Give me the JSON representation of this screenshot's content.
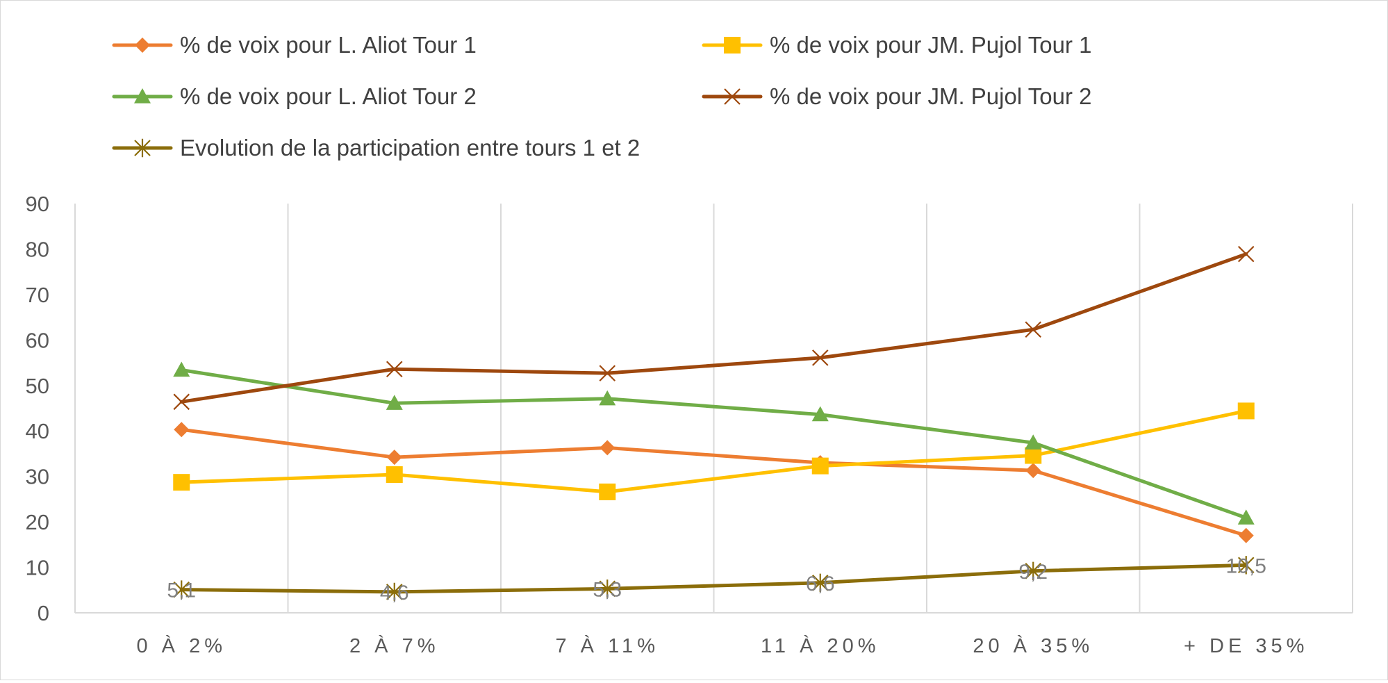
{
  "chart_data": {
    "type": "line",
    "title": "",
    "xlabel": "",
    "ylabel": "",
    "categories": [
      "0 À 2%",
      "2 À 7%",
      "7 À 11%",
      "11 À 20%",
      "20 À 35%",
      "+ DE 35%"
    ],
    "ylim": [
      0,
      90
    ],
    "yticks": [
      0,
      10,
      20,
      30,
      40,
      50,
      60,
      70,
      80,
      90
    ],
    "grid": "vertical",
    "legend_position": "top",
    "series": [
      {
        "name": "% de voix pour L. Aliot Tour 1",
        "color": "#ED7D31",
        "marker": "diamond",
        "values": [
          40.3,
          34.2,
          36.3,
          33.0,
          31.3,
          17.0
        ]
      },
      {
        "name": "% de voix pour JM.  Pujol Tour 1",
        "color": "#FFC000",
        "marker": "square",
        "values": [
          28.7,
          30.4,
          26.6,
          32.3,
          34.6,
          44.4
        ]
      },
      {
        "name": "% de voix pour L. Aliot Tour 2",
        "color": "#70AD47",
        "marker": "triangle",
        "values": [
          53.4,
          46.1,
          47.1,
          43.6,
          37.4,
          20.9
        ]
      },
      {
        "name": "% de voix pour JM.  Pujol Tour 2",
        "color": "#9E480E",
        "marker": "x",
        "values": [
          46.4,
          53.6,
          52.7,
          56.1,
          62.3,
          78.9
        ]
      },
      {
        "name": "Evolution de la participation entre tours 1 et 2",
        "color": "#8B6D0A",
        "marker": "star",
        "values": [
          5.1,
          4.6,
          5.3,
          6.6,
          9.2,
          10.5
        ],
        "data_labels": [
          "5,1",
          "4,6",
          "5,3",
          "6,6",
          "9,2",
          "10,5"
        ]
      }
    ]
  }
}
